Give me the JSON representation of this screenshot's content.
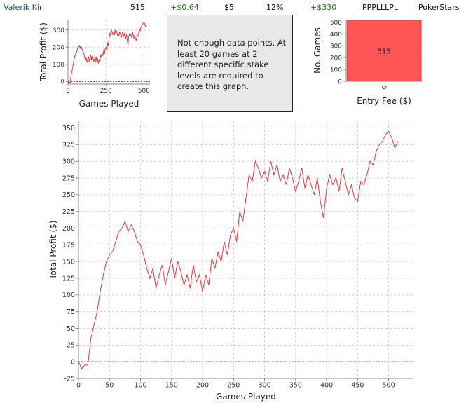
{
  "header": {
    "player": "Valerik Kir",
    "games": "515",
    "avg_profit": "+$0.64",
    "avg_stake": "$5",
    "roi": "12%",
    "total_profit": "+$330",
    "streak": "PPPLLLPL",
    "site": "PokerStars"
  },
  "colors": {
    "line": "#e8383d",
    "bar": "#ff5555",
    "zero_line": "#4a3aa8",
    "grid": "#d4d4d4",
    "positive": "#1a7a1a",
    "player_link": "#1c4e8a"
  },
  "message": "Not enough data points. At least 20 games at 2 different specific stake levels are required to create this graph.",
  "chart_data": [
    {
      "type": "line",
      "role": "thumbnail",
      "xlabel": "Games Played",
      "ylabel": "Total Profit ($)",
      "xlim": [
        0,
        540
      ],
      "ylim": [
        -15,
        360
      ],
      "xticks": [
        0,
        250,
        500
      ],
      "yticks": [
        0,
        100,
        200,
        300
      ],
      "grid": true,
      "x": [
        0,
        5,
        10,
        15,
        20,
        25,
        30,
        35,
        40,
        45,
        50,
        55,
        60,
        65,
        70,
        75,
        80,
        85,
        90,
        95,
        100,
        105,
        110,
        115,
        120,
        125,
        130,
        135,
        140,
        145,
        150,
        155,
        160,
        165,
        170,
        175,
        180,
        185,
        190,
        195,
        200,
        205,
        210,
        215,
        220,
        225,
        230,
        235,
        240,
        245,
        250,
        255,
        260,
        265,
        270,
        275,
        280,
        285,
        290,
        295,
        300,
        305,
        310,
        315,
        320,
        325,
        330,
        335,
        340,
        345,
        350,
        355,
        360,
        365,
        370,
        375,
        380,
        385,
        390,
        395,
        400,
        405,
        410,
        415,
        420,
        425,
        430,
        435,
        440,
        445,
        450,
        455,
        460,
        465,
        470,
        475,
        480,
        485,
        490,
        495,
        500,
        505,
        510,
        515
      ],
      "y": [
        0,
        -10,
        -5,
        -5,
        35,
        55,
        75,
        105,
        130,
        150,
        160,
        165,
        180,
        195,
        200,
        210,
        195,
        205,
        195,
        180,
        175,
        160,
        140,
        125,
        140,
        110,
        130,
        145,
        115,
        135,
        155,
        125,
        150,
        135,
        115,
        130,
        110,
        145,
        120,
        130,
        105,
        130,
        115,
        155,
        140,
        165,
        150,
        180,
        160,
        190,
        200,
        180,
        225,
        210,
        245,
        280,
        270,
        300,
        290,
        275,
        285,
        270,
        300,
        280,
        295,
        270,
        280,
        265,
        290,
        275,
        255,
        270,
        290,
        260,
        280,
        265,
        250,
        275,
        240,
        215,
        260,
        280,
        265,
        275,
        255,
        290,
        270,
        250,
        265,
        245,
        240,
        270,
        265,
        280,
        300,
        295,
        315,
        325,
        330,
        340,
        345,
        335,
        320,
        330
      ]
    },
    {
      "type": "bar",
      "role": "entry-fee",
      "categories": [
        "5"
      ],
      "values": [
        515
      ],
      "data_labels": [
        "515"
      ],
      "xlabel": "Entry Fee ($)",
      "ylabel": "No. Games",
      "ylim": [
        0,
        520
      ],
      "yticks": [
        0,
        100,
        200,
        300,
        400,
        500
      ],
      "grid": true
    },
    {
      "type": "line",
      "role": "main",
      "xlabel": "Games Played",
      "ylabel": "Total Profit ($)",
      "xlim": [
        0,
        540
      ],
      "ylim": [
        -25,
        360
      ],
      "xticks": [
        0,
        50,
        100,
        150,
        200,
        250,
        300,
        350,
        400,
        450,
        500
      ],
      "yticks": [
        -25,
        0,
        25,
        50,
        75,
        100,
        125,
        150,
        175,
        200,
        225,
        250,
        275,
        300,
        325,
        350
      ],
      "grid": true,
      "x": [
        0,
        5,
        10,
        15,
        20,
        25,
        30,
        35,
        40,
        45,
        50,
        55,
        60,
        65,
        70,
        75,
        80,
        85,
        90,
        95,
        100,
        105,
        110,
        115,
        120,
        125,
        130,
        135,
        140,
        145,
        150,
        155,
        160,
        165,
        170,
        175,
        180,
        185,
        190,
        195,
        200,
        205,
        210,
        215,
        220,
        225,
        230,
        235,
        240,
        245,
        250,
        255,
        260,
        265,
        270,
        275,
        280,
        285,
        290,
        295,
        300,
        305,
        310,
        315,
        320,
        325,
        330,
        335,
        340,
        345,
        350,
        355,
        360,
        365,
        370,
        375,
        380,
        385,
        390,
        395,
        400,
        405,
        410,
        415,
        420,
        425,
        430,
        435,
        440,
        445,
        450,
        455,
        460,
        465,
        470,
        475,
        480,
        485,
        490,
        495,
        500,
        505,
        510,
        515
      ],
      "y": [
        0,
        -10,
        -5,
        -5,
        35,
        55,
        75,
        105,
        130,
        150,
        160,
        165,
        180,
        195,
        200,
        210,
        195,
        205,
        195,
        180,
        175,
        160,
        140,
        125,
        140,
        110,
        130,
        145,
        115,
        135,
        155,
        125,
        150,
        135,
        115,
        130,
        110,
        145,
        120,
        130,
        105,
        130,
        115,
        155,
        140,
        165,
        150,
        180,
        160,
        190,
        200,
        180,
        225,
        210,
        245,
        280,
        270,
        300,
        290,
        275,
        285,
        270,
        300,
        280,
        295,
        270,
        280,
        265,
        290,
        275,
        255,
        270,
        290,
        260,
        280,
        265,
        250,
        275,
        240,
        215,
        260,
        280,
        265,
        275,
        255,
        290,
        270,
        250,
        265,
        245,
        240,
        270,
        265,
        280,
        300,
        295,
        315,
        325,
        330,
        340,
        345,
        335,
        320,
        330
      ]
    }
  ]
}
